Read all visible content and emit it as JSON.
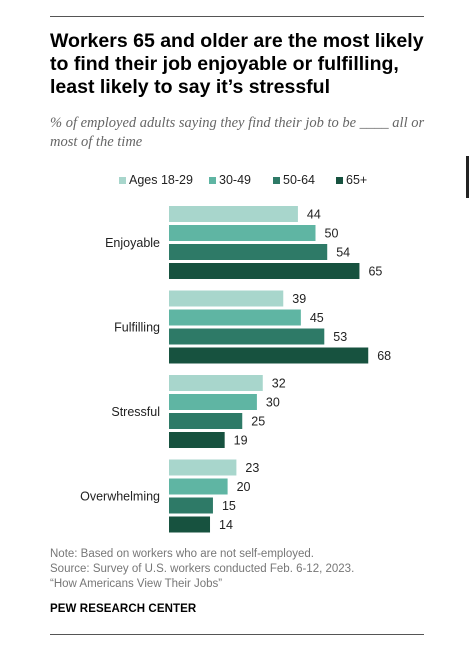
{
  "title": "Workers 65 and older are the most likely to find their job enjoyable or fulfilling, least likely to say it’s stressful",
  "subtitle": "% of employed adults saying they find their job to be ____ all or most of the time",
  "note": {
    "line1": "Note: Based on workers who are not self-employed.",
    "line2": "Source: Survey of U.S. workers conducted Feb. 6-12, 2023.",
    "line3": "“How Americans View Their Jobs”"
  },
  "brand": "PEW RESEARCH CENTER",
  "colors": {
    "series": [
      "#a8d6cc",
      "#5fb5a3",
      "#2e7a67",
      "#17523f"
    ]
  },
  "chart_data": {
    "type": "bar",
    "orientation": "horizontal",
    "categories": [
      "Enjoyable",
      "Fulfilling",
      "Stressful",
      "Overwhelming"
    ],
    "series": [
      {
        "name": "Ages 18-29",
        "values": [
          44,
          39,
          32,
          23
        ]
      },
      {
        "name": "30-49",
        "values": [
          50,
          45,
          30,
          20
        ]
      },
      {
        "name": "50-64",
        "values": [
          54,
          53,
          25,
          15
        ]
      },
      {
        "name": "65+",
        "values": [
          65,
          68,
          19,
          14
        ]
      }
    ],
    "xlim": [
      0,
      100
    ],
    "grid": false,
    "legend": "top"
  }
}
